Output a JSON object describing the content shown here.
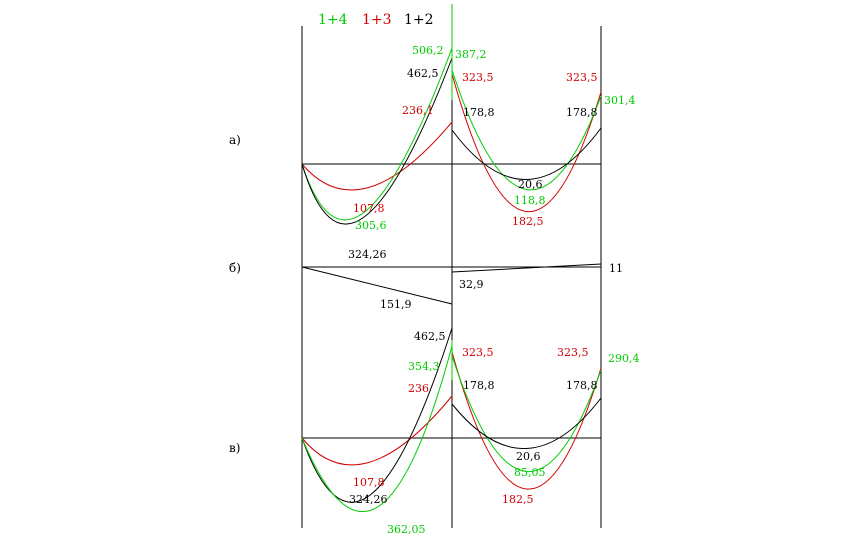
{
  "colors": {
    "black": "#000000",
    "red": "#d40000",
    "green": "#00cc00"
  },
  "legend": [
    {
      "text": "1+4",
      "color": "green"
    },
    {
      "text": "1+3",
      "color": "red"
    },
    {
      "text": "1+2",
      "color": "black"
    }
  ],
  "panels": {
    "a": "а)",
    "b": "б)",
    "c": "в)"
  },
  "labels": {
    "a": {
      "g_506_2": "506,2",
      "g_387_2": "387,2",
      "k_462_5": "462,5",
      "r_323_5_l": "323,5",
      "r_323_5_r": "323,5",
      "g_301_4": "301,4",
      "r_236_1": "236,1",
      "k_178_8_l": "178,8",
      "k_178_8_r": "178,8",
      "k_20_6": "20,6",
      "g_118_8": "118,8",
      "r_182_5": "182,5",
      "r_107_8": "107,8",
      "g_305_6": "305,6",
      "k_324_26": "324,26"
    },
    "b": {
      "k_11": "11",
      "k_32_9": "32,9",
      "k_151_9": "151,9"
    },
    "c": {
      "k_462_5": "462,5",
      "g_354_3": "354,3",
      "r_323_5_l": "323,5",
      "r_323_5_r": "323,5",
      "g_290_4": "290,4",
      "r_236": "236",
      "k_178_8_l": "178,8",
      "k_178_8_r": "178,8",
      "k_20_6": "20,6",
      "g_85_05": "85,05",
      "r_182_5": "182,5",
      "r_107_8": "107,8",
      "k_324_26": "324,26",
      "g_362_05": "362,05"
    }
  }
}
